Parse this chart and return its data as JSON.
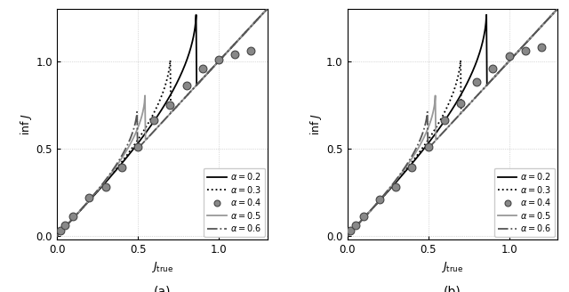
{
  "title_a": "(a)",
  "title_b": "(b)",
  "xlabel": "$J_\\mathrm{true}$",
  "xlim": [
    0,
    1.3
  ],
  "ylim": [
    -0.02,
    1.3
  ],
  "xticks": [
    0.0,
    0.5,
    1.0
  ],
  "yticks": [
    0.0,
    0.5,
    1.0
  ],
  "scatter_color": "#888888",
  "scatter_edgecolor": "#444444",
  "scatter_size": 40,
  "scatter_lw": 0.8,
  "scatter_x_a": [
    0.02,
    0.05,
    0.1,
    0.2,
    0.3,
    0.4,
    0.5,
    0.6,
    0.7,
    0.8,
    0.9,
    1.0,
    1.1,
    1.2
  ],
  "scatter_y_a": [
    0.03,
    0.06,
    0.11,
    0.22,
    0.28,
    0.39,
    0.51,
    0.66,
    0.75,
    0.86,
    0.96,
    1.01,
    1.04,
    1.06
  ],
  "scatter_x_b": [
    0.02,
    0.05,
    0.1,
    0.2,
    0.3,
    0.4,
    0.5,
    0.6,
    0.7,
    0.8,
    0.9,
    1.0,
    1.1,
    1.2
  ],
  "scatter_y_b": [
    0.03,
    0.06,
    0.11,
    0.21,
    0.28,
    0.39,
    0.51,
    0.66,
    0.76,
    0.88,
    0.96,
    1.03,
    1.06,
    1.08
  ],
  "line_configs": {
    "0.2": {
      "ls": "-",
      "color": "#000000",
      "lw": 1.3
    },
    "0.3": {
      "ls": ":",
      "color": "#000000",
      "lw": 1.3
    },
    "0.5": {
      "ls": "-",
      "color": "#999999",
      "lw": 1.3
    },
    "0.6": {
      "ls": "-.",
      "color": "#555555",
      "lw": 1.3
    }
  },
  "legend_labels": [
    "$\\alpha = 0.2$",
    "$\\alpha = 0.3$",
    "$\\alpha = 0.4$",
    "$\\alpha = 0.5$",
    "$\\alpha = 0.6$"
  ]
}
